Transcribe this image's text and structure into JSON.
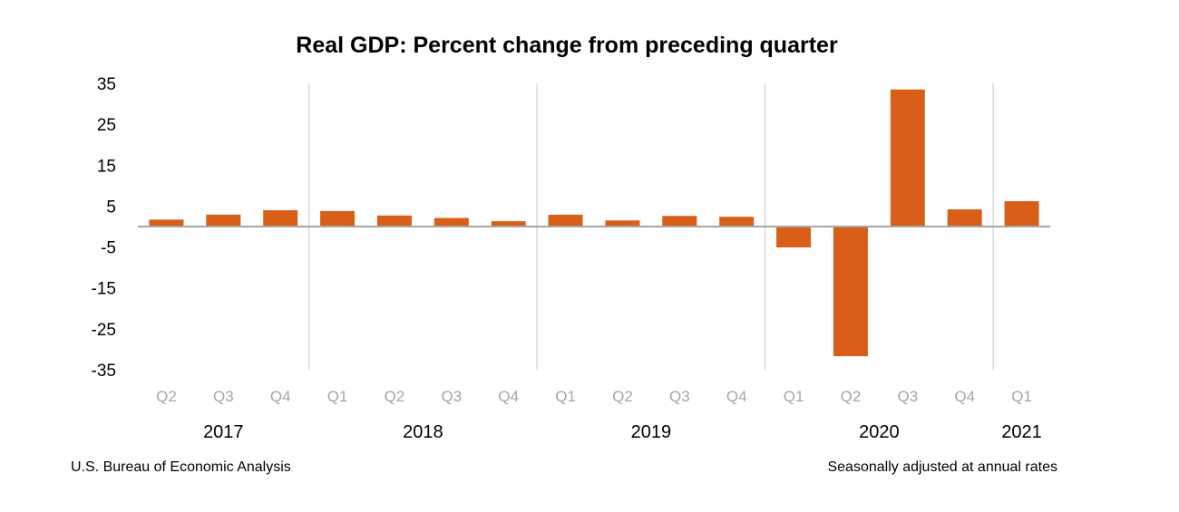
{
  "chart_data": {
    "type": "bar",
    "title": "Real GDP:  Percent change from preceding quarter",
    "xlabel": "",
    "ylabel": "",
    "ylim": [
      -35,
      35
    ],
    "yticks": [
      35,
      25,
      15,
      5,
      -5,
      -15,
      -25,
      -35
    ],
    "grid": false,
    "categories": [
      "Q2",
      "Q3",
      "Q4",
      "Q1",
      "Q2",
      "Q3",
      "Q4",
      "Q1",
      "Q2",
      "Q3",
      "Q4",
      "Q1",
      "Q2",
      "Q3",
      "Q4",
      "Q1"
    ],
    "category_years": [
      "2017",
      "2017",
      "2017",
      "2018",
      "2018",
      "2018",
      "2018",
      "2019",
      "2019",
      "2019",
      "2019",
      "2020",
      "2020",
      "2020",
      "2020",
      "2021"
    ],
    "year_groups": [
      {
        "label": "2017",
        "count": 3
      },
      {
        "label": "2018",
        "count": 4
      },
      {
        "label": "2019",
        "count": 4
      },
      {
        "label": "2020",
        "count": 4
      },
      {
        "label": "2021",
        "count": 1
      }
    ],
    "series": [
      {
        "name": "Real GDP percent change",
        "color": "#d95f19",
        "values": [
          1.7,
          2.9,
          4.0,
          3.8,
          2.7,
          2.1,
          1.3,
          2.9,
          1.5,
          2.6,
          2.4,
          -5.1,
          -31.7,
          33.5,
          4.2,
          6.2
        ]
      }
    ],
    "source_note": "U.S. Bureau of Economic Analysis",
    "adjustment_note": "Seasonally adjusted at annual rates"
  },
  "colors": {
    "bar": "#d95f19",
    "baseline": "#a6a6a6",
    "separator": "#d9d9d9",
    "quarter_label": "#a6a6a6"
  }
}
